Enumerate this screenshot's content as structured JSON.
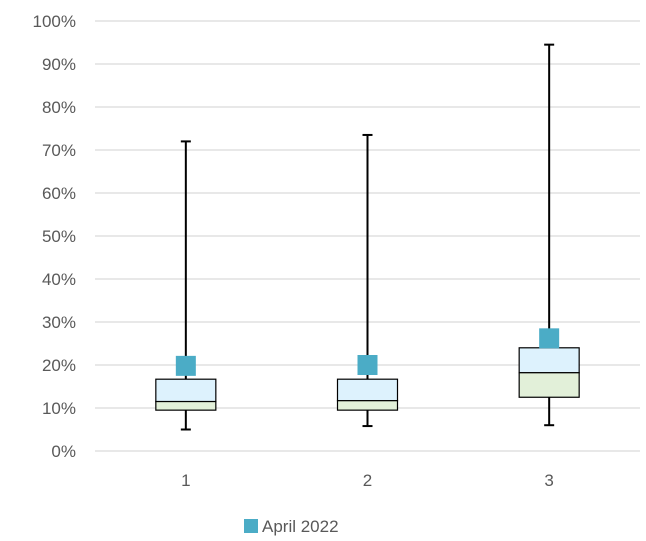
{
  "chart_data": {
    "type": "box",
    "title": "",
    "xlabel": "",
    "ylabel": "",
    "categories": [
      "1",
      "2",
      "3"
    ],
    "ylim": [
      0,
      1
    ],
    "yticks": [
      "0%",
      "10%",
      "20%",
      "30%",
      "40%",
      "50%",
      "60%",
      "70%",
      "80%",
      "90%",
      "100%"
    ],
    "grid": true,
    "legend_position": "bottom",
    "boxes": [
      {
        "category": "1",
        "min": 0.05,
        "q1": 0.095,
        "median": 0.115,
        "q3": 0.167,
        "max": 0.72
      },
      {
        "category": "2",
        "min": 0.058,
        "q1": 0.095,
        "median": 0.117,
        "q3": 0.167,
        "max": 0.735
      },
      {
        "category": "3",
        "min": 0.06,
        "q1": 0.125,
        "median": 0.182,
        "q3": 0.24,
        "max": 0.945
      }
    ],
    "series": [
      {
        "name": "April 2022",
        "values": [
          0.198,
          0.2,
          0.262
        ]
      }
    ],
    "colors": {
      "marker": "#4BACC6",
      "upper_box": "#DDF2FD",
      "lower_box": "#E2F0D9",
      "grid": "#D9D9D9",
      "text": "#595959",
      "whisker": "#000000"
    }
  }
}
